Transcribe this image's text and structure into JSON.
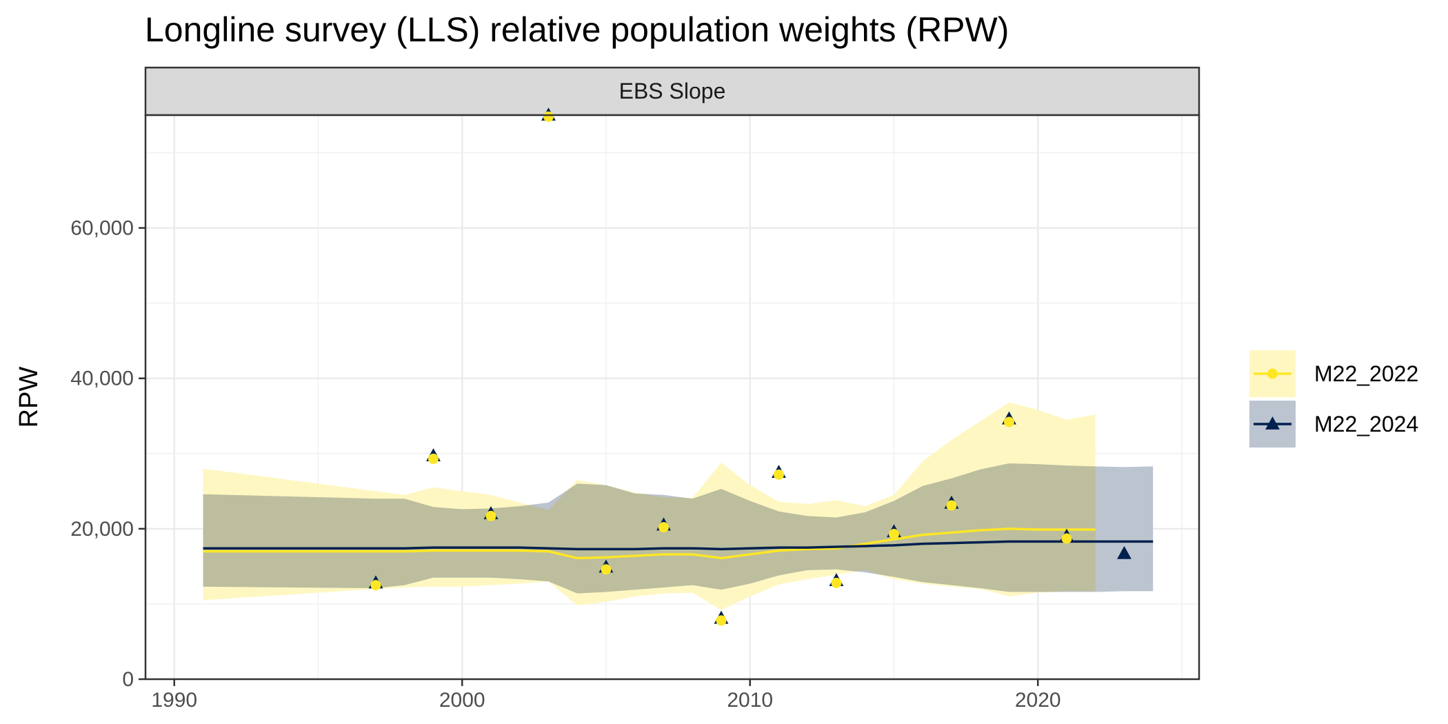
{
  "chart_data": {
    "type": "line",
    "title": "Longline survey (LLS) relative population weights (RPW)",
    "facet": "EBS Slope",
    "xlabel": "",
    "ylabel": "RPW",
    "xlim": [
      1989,
      2025.6
    ],
    "ylim": [
      0,
      75000
    ],
    "xticks": [
      1990,
      2000,
      2010,
      2020
    ],
    "xtick_labels": [
      "1990",
      "2000",
      "2010",
      "2020"
    ],
    "yticks": [
      0,
      20000,
      40000,
      60000
    ],
    "ytick_labels": [
      "0",
      "20,000",
      "40,000",
      "60,000"
    ],
    "grid": true,
    "legend_position": "right",
    "series": [
      {
        "name": "M22_2022",
        "color": "#FDE725",
        "fill": "#FFF7C2",
        "marker": "circle",
        "x": [
          1991,
          1997,
          1998,
          1999,
          2000,
          2001,
          2002,
          2003,
          2004,
          2005,
          2006,
          2007,
          2008,
          2009,
          2010,
          2011,
          2012,
          2013,
          2014,
          2015,
          2016,
          2017,
          2018,
          2019,
          2020,
          2021,
          2022
        ],
        "fit": [
          17000,
          17000,
          17000,
          17100,
          17100,
          17100,
          17100,
          17000,
          16100,
          16200,
          16400,
          16600,
          16600,
          16100,
          16600,
          17100,
          17300,
          17400,
          18000,
          18600,
          19200,
          19500,
          19800,
          20000,
          19900,
          19900,
          19900
        ],
        "lower": [
          10500,
          12000,
          12200,
          12300,
          12300,
          12500,
          12700,
          13000,
          9800,
          10300,
          11000,
          11400,
          11500,
          9200,
          11000,
          12600,
          13300,
          13900,
          14500,
          13300,
          12700,
          12300,
          12000,
          11000,
          11500,
          11700,
          11700
        ],
        "upper": [
          28000,
          25000,
          24500,
          25500,
          25000,
          24500,
          23500,
          22500,
          26500,
          25800,
          24800,
          24200,
          24100,
          28800,
          25800,
          23600,
          23300,
          23800,
          23000,
          24500,
          29000,
          31800,
          34300,
          36800,
          35800,
          34500,
          35200
        ],
        "obs_x": [
          1997,
          1999,
          2001,
          2003,
          2005,
          2007,
          2009,
          2011,
          2013,
          2015,
          2017,
          2019,
          2021
        ],
        "obs_y": [
          12500,
          29300,
          21700,
          74800,
          14600,
          20200,
          7800,
          27200,
          12800,
          19300,
          23100,
          34200,
          18700
        ]
      },
      {
        "name": "M22_2024",
        "color": "#00204D",
        "fill": "#BCC4D0",
        "marker": "triangle",
        "x": [
          1991,
          1997,
          1998,
          1999,
          2000,
          2001,
          2002,
          2003,
          2004,
          2005,
          2006,
          2007,
          2008,
          2009,
          2010,
          2011,
          2012,
          2013,
          2014,
          2015,
          2016,
          2017,
          2018,
          2019,
          2020,
          2021,
          2022,
          2023,
          2024
        ],
        "fit": [
          17400,
          17400,
          17400,
          17500,
          17500,
          17500,
          17500,
          17400,
          17300,
          17300,
          17300,
          17400,
          17400,
          17300,
          17400,
          17500,
          17500,
          17600,
          17700,
          17800,
          18000,
          18100,
          18200,
          18300,
          18300,
          18300,
          18300,
          18300,
          18300
        ],
        "lower": [
          12300,
          12100,
          12500,
          13500,
          13500,
          13500,
          13300,
          13000,
          11400,
          11600,
          11900,
          12200,
          12500,
          11900,
          12700,
          13800,
          14500,
          14600,
          14200,
          13600,
          12900,
          12500,
          12100,
          11600,
          11600,
          11600,
          11600,
          11700,
          11700
        ],
        "upper": [
          24600,
          24000,
          24000,
          22900,
          22600,
          22700,
          23000,
          23500,
          26000,
          25800,
          24700,
          24500,
          24000,
          25300,
          23700,
          22300,
          21700,
          21500,
          22200,
          23700,
          25700,
          26700,
          27900,
          28700,
          28600,
          28400,
          28300,
          28200,
          28300
        ],
        "obs_x": [
          1997,
          1999,
          2001,
          2003,
          2005,
          2007,
          2009,
          2011,
          2013,
          2015,
          2017,
          2019,
          2021,
          2023
        ],
        "obs_y": [
          12800,
          29700,
          22000,
          75000,
          14900,
          20500,
          8100,
          27500,
          13100,
          19600,
          23400,
          34600,
          19000,
          16700
        ]
      }
    ]
  }
}
